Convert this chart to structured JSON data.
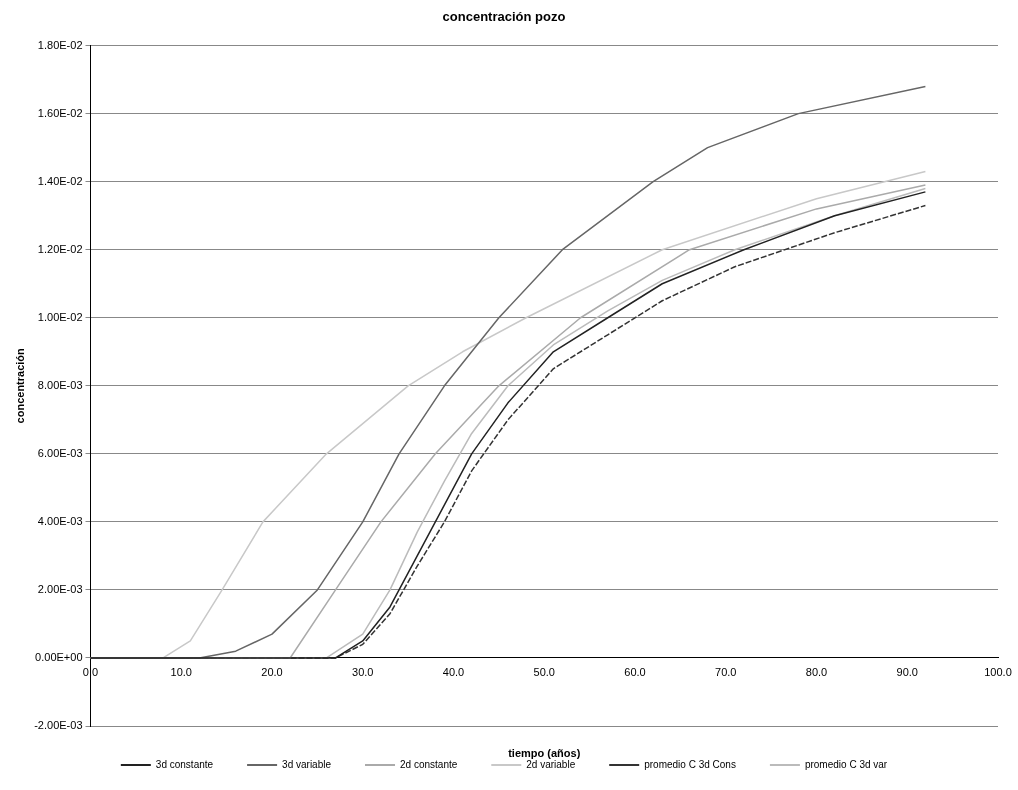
{
  "chart_data": {
    "type": "line",
    "title": "concentración pozo",
    "xlabel": "tiempo (años)",
    "ylabel": "concentración",
    "xlim": [
      0,
      100
    ],
    "xticks": [
      {
        "value": 0,
        "label": "0.0"
      },
      {
        "value": 10,
        "label": "10.0"
      },
      {
        "value": 20,
        "label": "20.0"
      },
      {
        "value": 30,
        "label": "30.0"
      },
      {
        "value": 40,
        "label": "40.0"
      },
      {
        "value": 50,
        "label": "50.0"
      },
      {
        "value": 60,
        "label": "60.0"
      },
      {
        "value": 70,
        "label": "70.0"
      },
      {
        "value": 80,
        "label": "80.0"
      },
      {
        "value": 90,
        "label": "90.0"
      },
      {
        "value": 100,
        "label": "100.0"
      }
    ],
    "ylim": [
      -0.002,
      0.018
    ],
    "yticks": [
      {
        "value": -0.002,
        "label": "-2.00E-03"
      },
      {
        "value": 0,
        "label": "0.00E+00"
      },
      {
        "value": 0.002,
        "label": "2.00E-03"
      },
      {
        "value": 0.004,
        "label": "4.00E-03"
      },
      {
        "value": 0.006,
        "label": "6.00E-03"
      },
      {
        "value": 0.008,
        "label": "8.00E-03"
      },
      {
        "value": 0.01,
        "label": "1.00E-02"
      },
      {
        "value": 0.012,
        "label": "1.20E-02"
      },
      {
        "value": 0.014,
        "label": "1.40E-02"
      },
      {
        "value": 0.016,
        "label": "1.60E-02"
      },
      {
        "value": 0.018,
        "label": "1.80E-02"
      }
    ],
    "grid": "y",
    "legend": "bottom",
    "marker": "none",
    "series": [
      {
        "name": "3d constante",
        "color": "#222222",
        "x": [
          0,
          27,
          30,
          33,
          36,
          39,
          42,
          46,
          51,
          57,
          63,
          72,
          82,
          92
        ],
        "values": [
          0,
          0,
          0.0005,
          0.0015,
          0.003,
          0.0045,
          0.006,
          0.0075,
          0.009,
          0.01,
          0.011,
          0.012,
          0.013,
          0.0137
        ]
      },
      {
        "name": "3d variable",
        "color": "#666666",
        "x": [
          0,
          12,
          16,
          20,
          25,
          30,
          34,
          39,
          45,
          52,
          62,
          68,
          78,
          92
        ],
        "values": [
          0,
          0,
          0.0002,
          0.0007,
          0.002,
          0.004,
          0.006,
          0.008,
          0.01,
          0.012,
          0.014,
          0.015,
          0.016,
          0.0168
        ]
      },
      {
        "name": "2d constante",
        "color": "#aaaaaa",
        "x": [
          0,
          22,
          27,
          32,
          38,
          45,
          54,
          66,
          80,
          92
        ],
        "values": [
          0,
          0,
          0.002,
          0.004,
          0.006,
          0.008,
          0.01,
          0.012,
          0.0132,
          0.0139
        ]
      },
      {
        "name": "2d variable",
        "color": "#c8c8c8",
        "x": [
          0,
          8,
          11,
          14.5,
          19,
          26,
          35,
          41,
          48,
          63,
          80,
          92
        ],
        "values": [
          0,
          0,
          0.0005,
          0.002,
          0.004,
          0.006,
          0.008,
          0.009,
          0.01,
          0.012,
          0.0135,
          0.0143
        ]
      },
      {
        "name": "promedio C 3d Cons",
        "color": "#333333",
        "line_style": "dashed",
        "x": [
          0,
          27,
          30,
          33,
          36,
          39,
          42,
          46,
          51,
          57,
          63,
          71,
          82,
          92
        ],
        "values": [
          0,
          0,
          0.0004,
          0.0013,
          0.0027,
          0.004,
          0.0055,
          0.007,
          0.0085,
          0.0095,
          0.0105,
          0.0115,
          0.0125,
          0.0133
        ]
      },
      {
        "name": "promedio C 3d var",
        "color": "#bbbbbb",
        "x": [
          0,
          26,
          30,
          33,
          36,
          39,
          42,
          46,
          51,
          57,
          63,
          71,
          82,
          92
        ],
        "values": [
          0,
          0,
          0.0007,
          0.002,
          0.0037,
          0.0052,
          0.0066,
          0.008,
          0.0092,
          0.0102,
          0.0111,
          0.012,
          0.013,
          0.0138
        ]
      }
    ]
  }
}
